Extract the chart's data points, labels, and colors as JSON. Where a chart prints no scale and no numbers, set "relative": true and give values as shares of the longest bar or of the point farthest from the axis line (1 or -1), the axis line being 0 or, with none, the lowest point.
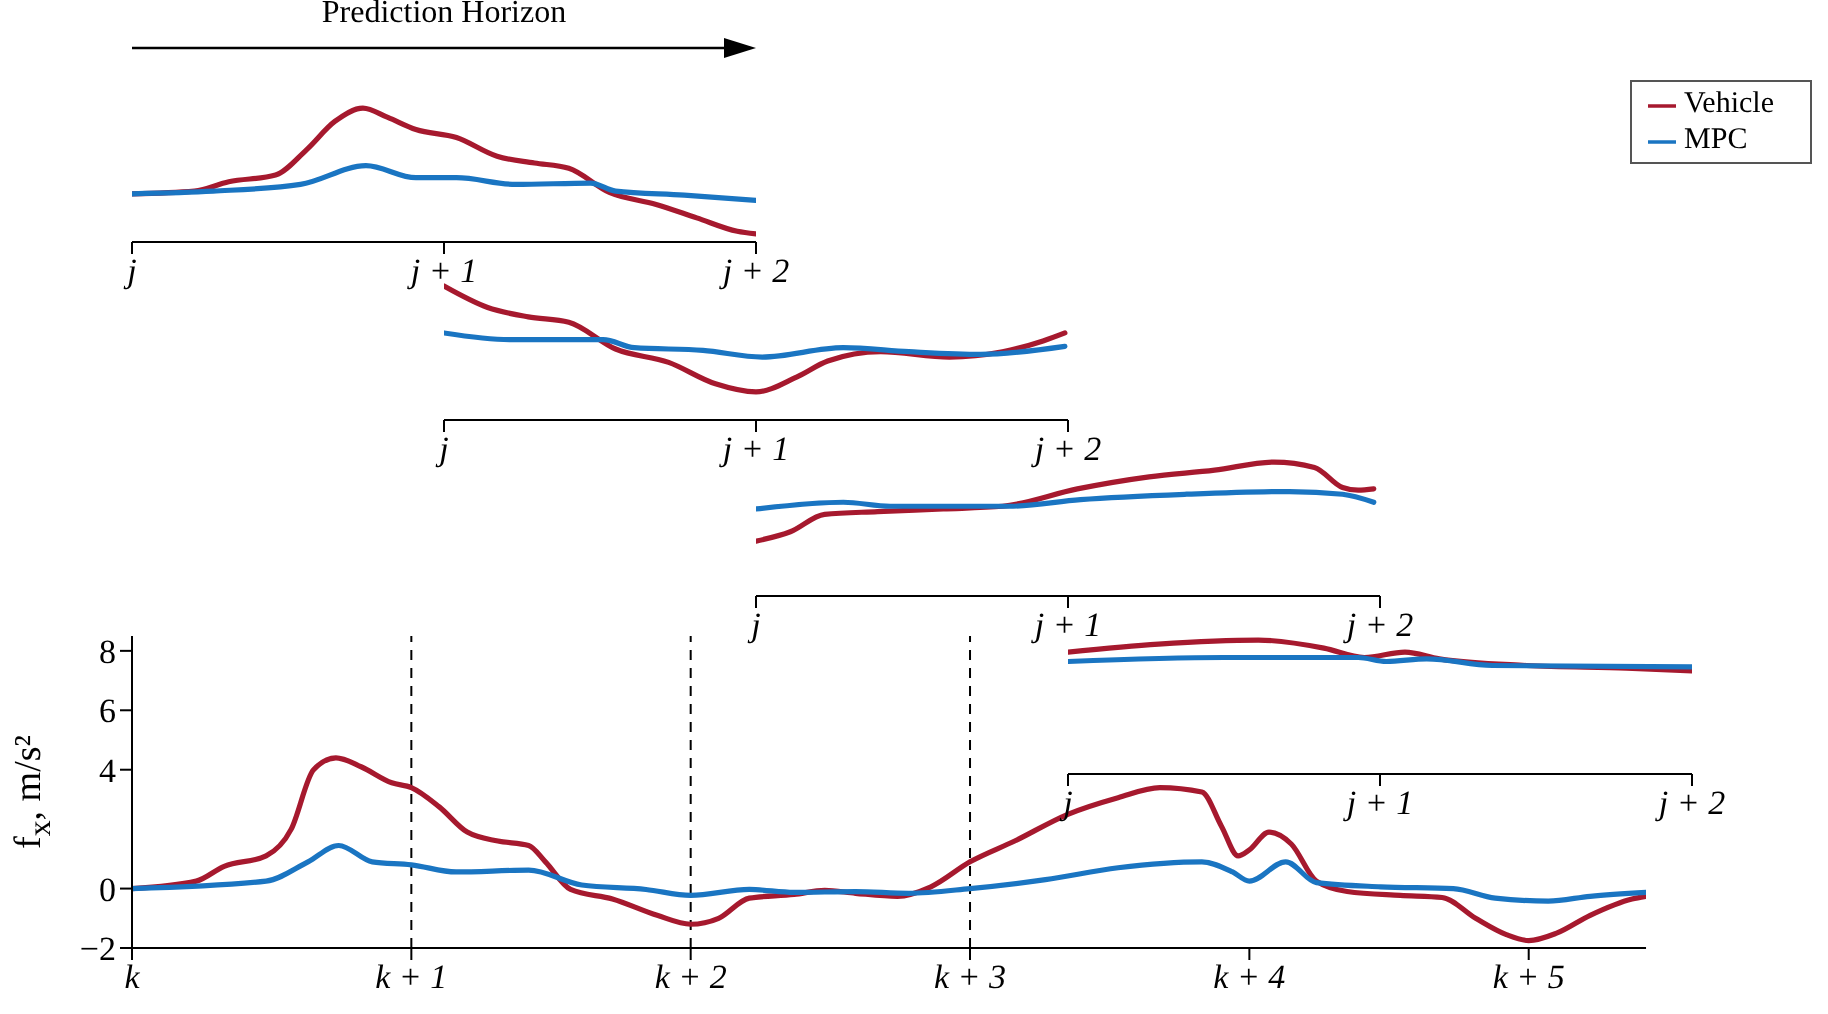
{
  "chart_data": [
    {
      "type": "line",
      "ylabel": "f$_{x}$, m/s²",
      "xlim": [
        0,
        5.42
      ],
      "xticks": [
        {
          "value": 0,
          "label": "k"
        },
        {
          "value": 1,
          "label": "k + 1"
        },
        {
          "value": 2,
          "label": "k + 2"
        },
        {
          "value": 3,
          "label": "k + 3"
        },
        {
          "value": 4,
          "label": "k + 4"
        },
        {
          "value": 5,
          "label": "k + 5"
        }
      ],
      "ylim": [
        -2,
        8.5
      ],
      "yticks": [
        -2,
        0,
        4,
        6,
        8
      ],
      "legend": "top right",
      "ref_lines": [
        {
          "axis": "x",
          "value": 1,
          "line_style": "dashed"
        },
        {
          "axis": "x",
          "value": 2,
          "line_style": "dashed"
        },
        {
          "axis": "x",
          "value": 3,
          "line_style": "dashed"
        }
      ],
      "series": [
        {
          "name": "Vehicle",
          "color": "#a6192e",
          "x": [
            0,
            0.23,
            0.33,
            0.48,
            0.57,
            0.65,
            0.73,
            0.82,
            0.93,
            1.0,
            1.1,
            1.2,
            1.31,
            1.42,
            1.48,
            1.57,
            1.72,
            1.88,
            2.0,
            2.1,
            2.21,
            2.37,
            2.48,
            2.59,
            2.74,
            2.86,
            3.0,
            3.16,
            3.35,
            3.53,
            3.68,
            3.83,
            3.9,
            3.96,
            4.0,
            4.07,
            4.15,
            4.24,
            4.35,
            4.54,
            4.69,
            4.81,
            4.92,
            5.0,
            5.1,
            5.22,
            5.37,
            5.42
          ],
          "values": [
            0,
            0.25,
            0.75,
            1.1,
            2,
            4,
            4.4,
            4.1,
            3.56,
            3.4,
            2.75,
            1.9,
            1.6,
            1.45,
            0.9,
            -0.03,
            -0.35,
            -0.9,
            -1.2,
            -1.0,
            -0.32,
            -0.2,
            -0.06,
            -0.16,
            -0.26,
            0.06,
            0.9,
            1.6,
            2.5,
            3.06,
            3.4,
            3.25,
            2.1,
            1.1,
            1.3,
            1.9,
            1.5,
            0.25,
            -0.1,
            -0.23,
            -0.3,
            -1.0,
            -1.55,
            -1.75,
            -1.5,
            -0.9,
            -0.35,
            -0.26
          ]
        },
        {
          "name": "MPC",
          "color": "#1a75c2",
          "x": [
            0,
            0.48,
            0.63,
            0.74,
            0.86,
            1.0,
            1.16,
            1.42,
            1.61,
            1.84,
            2.0,
            2.21,
            2.37,
            2.59,
            2.78,
            3.0,
            3.27,
            3.53,
            3.83,
            3.94,
            4.0,
            4.13,
            4.24,
            4.47,
            4.73,
            4.88,
            5.07,
            5.22,
            5.42
          ],
          "values": [
            0,
            0.25,
            0.9,
            1.45,
            0.9,
            0.8,
            0.56,
            0.62,
            0.12,
            -0.03,
            -0.23,
            -0.03,
            -0.13,
            -0.1,
            -0.16,
            0,
            0.3,
            0.7,
            0.9,
            0.56,
            0.25,
            0.9,
            0.2,
            0.06,
            0,
            -0.32,
            -0.42,
            -0.26,
            -0.13
          ]
        }
      ]
    },
    {
      "type": "line",
      "title": "Prediction Horizon",
      "relative": true,
      "tick_labels": "x",
      "xlim": [
        0,
        2
      ],
      "xticks": [
        {
          "value": 0,
          "label": "j"
        },
        {
          "value": 1,
          "label": "j + 1"
        },
        {
          "value": 2,
          "label": "j + 2"
        }
      ],
      "series": [
        {
          "color": "#a6192e",
          "x": [
            0,
            0.2,
            0.31,
            0.46,
            0.56,
            0.65,
            0.74,
            0.82,
            0.91,
            1.04,
            1.17,
            1.29,
            1.4,
            1.53,
            1.68,
            1.81,
            1.94,
            2.0
          ],
          "values": [
            0.36,
            0.38,
            0.45,
            0.5,
            0.69,
            0.9,
            1.0,
            0.93,
            0.84,
            0.78,
            0.64,
            0.59,
            0.55,
            0.37,
            0.28,
            0.18,
            0.08,
            0.06
          ]
        },
        {
          "color": "#1a75c2",
          "x": [
            0,
            0.26,
            0.54,
            0.75,
            0.91,
            1.04,
            1.23,
            1.47,
            1.55,
            1.77,
            2.0
          ],
          "values": [
            0.36,
            0.38,
            0.43,
            0.57,
            0.48,
            0.48,
            0.43,
            0.44,
            0.38,
            0.35,
            0.31
          ]
        }
      ]
    },
    {
      "type": "line",
      "relative": true,
      "tick_labels": "x",
      "xlim": [
        0,
        2
      ],
      "xticks": [
        {
          "value": 0,
          "label": "j"
        },
        {
          "value": 1,
          "label": "j + 1"
        },
        {
          "value": 2,
          "label": "j + 2"
        }
      ],
      "series": [
        {
          "color": "#a6192e",
          "x": [
            0,
            0.14,
            0.27,
            0.4,
            0.55,
            0.72,
            0.87,
            1.0,
            1.13,
            1.23,
            1.4,
            1.62,
            1.79,
            1.92,
            1.99
          ],
          "values": [
            1.0,
            0.84,
            0.77,
            0.73,
            0.53,
            0.43,
            0.27,
            0.21,
            0.32,
            0.44,
            0.51,
            0.47,
            0.51,
            0.59,
            0.65
          ]
        },
        {
          "color": "#1a75c2",
          "x": [
            0,
            0.21,
            0.51,
            0.61,
            0.83,
            1.02,
            1.28,
            1.49,
            1.72,
            1.99
          ],
          "values": [
            0.65,
            0.6,
            0.6,
            0.54,
            0.52,
            0.47,
            0.54,
            0.51,
            0.49,
            0.55
          ]
        }
      ]
    },
    {
      "type": "line",
      "relative": true,
      "tick_labels": "x",
      "xlim": [
        0,
        2
      ],
      "xticks": [
        {
          "value": 0,
          "label": "j"
        },
        {
          "value": 1,
          "label": "j + 1"
        },
        {
          "value": 2,
          "label": "j + 2"
        }
      ],
      "series": [
        {
          "color": "#a6192e",
          "x": [
            0,
            0.11,
            0.22,
            0.39,
            0.6,
            0.79,
            1.03,
            1.26,
            1.47,
            1.66,
            1.79,
            1.88,
            1.93,
            1.98
          ],
          "values": [
            0.41,
            0.48,
            0.61,
            0.63,
            0.65,
            0.67,
            0.8,
            0.89,
            0.94,
            1.0,
            0.96,
            0.81,
            0.79,
            0.8
          ]
        },
        {
          "color": "#1a75c2",
          "x": [
            0,
            0.28,
            0.43,
            0.6,
            0.81,
            1.04,
            1.38,
            1.71,
            1.88,
            1.98
          ],
          "values": [
            0.65,
            0.7,
            0.67,
            0.67,
            0.67,
            0.72,
            0.76,
            0.78,
            0.76,
            0.7
          ]
        }
      ]
    },
    {
      "type": "line",
      "relative": true,
      "tick_labels": "x",
      "xlim": [
        0,
        2
      ],
      "xticks": [
        {
          "value": 0,
          "label": "j"
        },
        {
          "value": 1,
          "label": "j + 1"
        },
        {
          "value": 2,
          "label": "j + 2"
        }
      ],
      "series": [
        {
          "color": "#a6192e",
          "x": [
            0,
            0.29,
            0.61,
            0.82,
            0.95,
            1.08,
            1.19,
            1.47,
            1.79,
            2.0
          ],
          "values": [
            0.91,
            0.97,
            1.0,
            0.94,
            0.87,
            0.91,
            0.86,
            0.81,
            0.79,
            0.77
          ]
        },
        {
          "color": "#1a75c2",
          "x": [
            0,
            0.5,
            0.93,
            1.02,
            1.15,
            1.36,
            2.0
          ],
          "values": [
            0.84,
            0.87,
            0.87,
            0.84,
            0.86,
            0.81,
            0.8
          ]
        }
      ]
    }
  ]
}
